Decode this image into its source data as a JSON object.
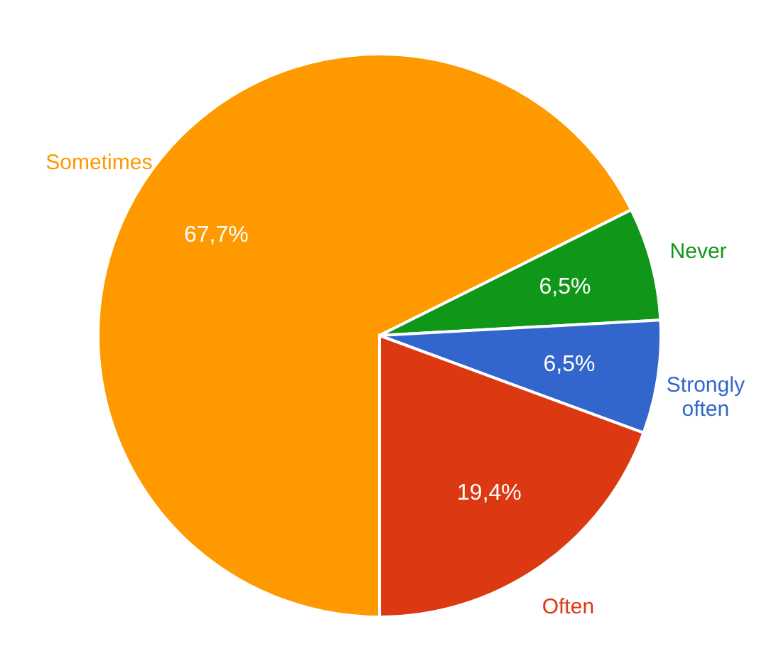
{
  "chart_data": {
    "type": "pie",
    "categories": [
      "Sometimes",
      "Never",
      "Strongly often",
      "Often"
    ],
    "values": [
      67.7,
      6.5,
      6.5,
      19.4
    ],
    "value_labels": [
      "67,7%",
      "6,5%",
      "6,5%",
      "19,4%"
    ],
    "colors": [
      "#ff9900",
      "#109618",
      "#3366cc",
      "#dc3912"
    ],
    "legend": false
  }
}
